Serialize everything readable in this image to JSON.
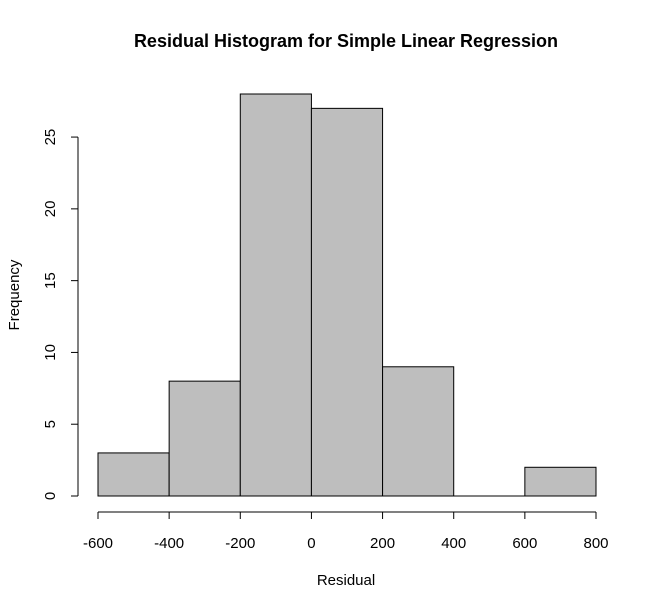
{
  "chart_data": {
    "type": "bar",
    "title": "Residual Histogram for Simple Linear Regression",
    "xlabel": "Residual",
    "ylabel": "Frequency",
    "bins": [
      {
        "from": -600,
        "to": -400,
        "count": 3
      },
      {
        "from": -400,
        "to": -200,
        "count": 8
      },
      {
        "from": -200,
        "to": 0,
        "count": 28
      },
      {
        "from": 0,
        "to": 200,
        "count": 27
      },
      {
        "from": 200,
        "to": 400,
        "count": 9
      },
      {
        "from": 400,
        "to": 600,
        "count": 0
      },
      {
        "from": 600,
        "to": 800,
        "count": 2
      }
    ],
    "x_ticks": [
      -600,
      -400,
      -200,
      0,
      200,
      400,
      600,
      800
    ],
    "y_ticks": [
      0,
      5,
      10,
      15,
      20,
      25
    ],
    "xlim": [
      -600,
      800
    ],
    "ylim": [
      0,
      28
    ],
    "bar_color": "#bebebe",
    "grid": false
  }
}
